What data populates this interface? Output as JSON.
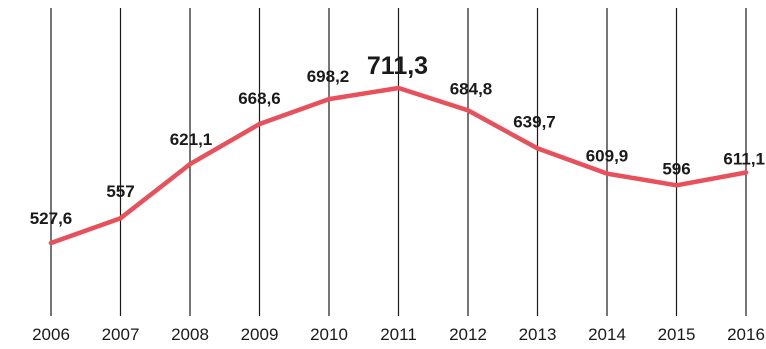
{
  "chart_data": {
    "type": "line",
    "title": "",
    "xlabel": "",
    "ylabel": "",
    "categories": [
      "2006",
      "2007",
      "2008",
      "2009",
      "2010",
      "2011",
      "2012",
      "2013",
      "2014",
      "2015",
      "2016"
    ],
    "series": [
      {
        "values": [
          527.6,
          557,
          621.1,
          668.6,
          698.2,
          711.3,
          684.8,
          639.7,
          609.9,
          596,
          611.1
        ],
        "value_labels": [
          "527,6",
          "557",
          "621,1",
          "668,6",
          "698,2",
          "711,3",
          "684,8",
          "639,7",
          "609,9",
          "596",
          "611,1"
        ],
        "color": "#e8505b",
        "highlight_index": 5
      }
    ],
    "grid": true,
    "ylim": [
      400,
      800
    ]
  }
}
